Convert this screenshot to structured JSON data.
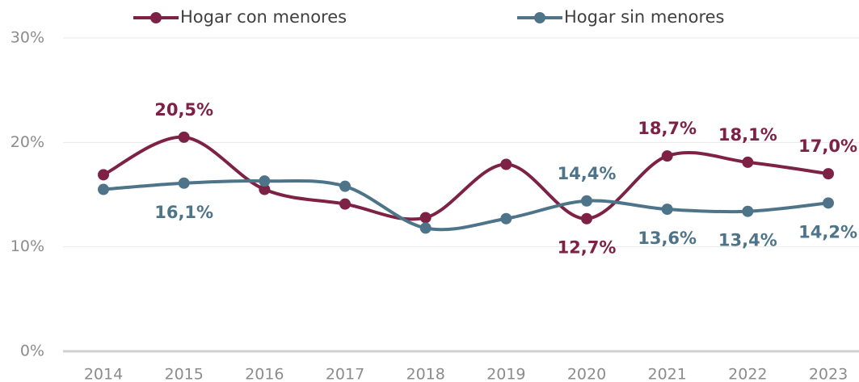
{
  "chart_data": {
    "type": "line",
    "categories": [
      "2014",
      "2015",
      "2016",
      "2017",
      "2018",
      "2019",
      "2020",
      "2021",
      "2022",
      "2023"
    ],
    "series": [
      {
        "name": "Hogar con menores",
        "color": "#7d2245",
        "values": [
          16.9,
          20.5,
          15.5,
          14.1,
          12.8,
          17.9,
          12.7,
          18.7,
          18.1,
          17.0
        ],
        "value_labels": [
          null,
          "20,5%",
          null,
          null,
          null,
          null,
          "12,7%",
          "18,7%",
          "18,1%",
          "17,0%"
        ]
      },
      {
        "name": "Hogar sin menores",
        "color": "#4e7489",
        "values": [
          15.5,
          16.1,
          16.3,
          15.8,
          11.8,
          12.7,
          14.4,
          13.6,
          13.4,
          14.2
        ],
        "value_labels": [
          null,
          "16,1%",
          null,
          null,
          null,
          null,
          "14,4%",
          "13,6%",
          "13,4%",
          "14,2%"
        ]
      }
    ],
    "ylim": [
      0,
      30
    ],
    "yticks": [
      {
        "value": 0,
        "label": "0%"
      },
      {
        "value": 10,
        "label": "10%"
      },
      {
        "value": 20,
        "label": "20%"
      },
      {
        "value": 30,
        "label": "30%"
      }
    ],
    "grid": true,
    "legend": "top"
  }
}
